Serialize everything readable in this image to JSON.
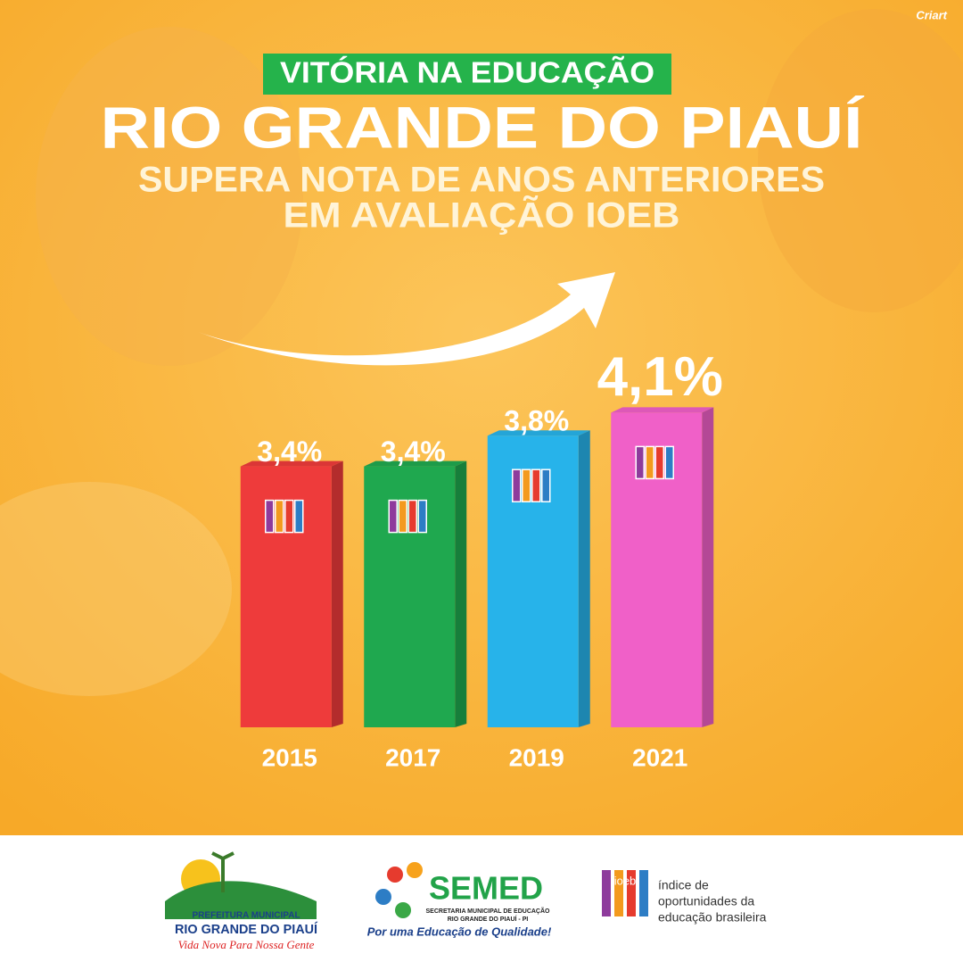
{
  "chart_data": {
    "type": "bar",
    "badge": "VITÓRIA NA EDUCAÇÃO",
    "title": "RIO GRANDE DO PIAUÍ",
    "subtitle": [
      "SUPERA NOTA DE ANOS ANTERIORES",
      "EM AVALIAÇÃO IOEB"
    ],
    "categories": [
      "2015",
      "2017",
      "2019",
      "2021"
    ],
    "values": [
      3.4,
      3.4,
      3.8,
      4.1
    ],
    "value_labels": [
      "3,4%",
      "3,4%",
      "3,8%",
      "4,1%"
    ],
    "colors": [
      "#ee3b3b",
      "#1fa84f",
      "#27b3ea",
      "#f060c8"
    ],
    "ylim": [
      0,
      4.5
    ]
  },
  "header": {
    "brand": "Criart"
  },
  "footer": {
    "prefeitura": {
      "line1": "PREFEITURA MUNICIPAL",
      "line2": "RIO GRANDE DO PIAUÍ",
      "slogan": "Vida Nova Para Nossa Gente"
    },
    "semed": {
      "name": "SEMED",
      "line1": "SECRETARIA MUNICIPAL DE EDUCAÇÃO",
      "line2": "RIO GRANDE DO PIAUÍ - PI",
      "slogan": "Por uma Educação de Qualidade!"
    },
    "ioeb": {
      "logo": "ioeb",
      "lines": [
        "índice de",
        "oportunidades da",
        "educação brasileira"
      ]
    }
  }
}
